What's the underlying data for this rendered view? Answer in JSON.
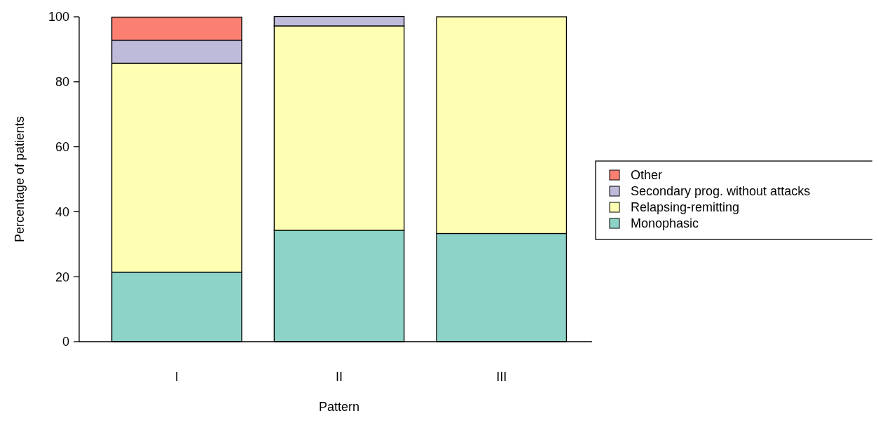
{
  "chart_data": {
    "type": "bar",
    "stacked": true,
    "xlabel": "Pattern",
    "ylabel": "Percentage of patients",
    "categories": [
      "I",
      "II",
      "III"
    ],
    "series": [
      {
        "name": "Monophasic",
        "color": "#8dd3c7",
        "values": [
          21.4,
          34.3,
          33.3
        ]
      },
      {
        "name": "Relapsing-remitting",
        "color": "#ffffb3",
        "values": [
          64.3,
          62.9,
          66.7
        ]
      },
      {
        "name": "Secondary prog. without attacks",
        "color": "#bebada",
        "values": [
          7.1,
          2.9,
          0
        ]
      },
      {
        "name": "Other",
        "color": "#fb8072",
        "values": [
          7.1,
          0,
          0
        ]
      }
    ],
    "ylim": [
      0,
      100
    ],
    "yticks": [
      0,
      20,
      40,
      60,
      80,
      100
    ],
    "legend": "right"
  }
}
